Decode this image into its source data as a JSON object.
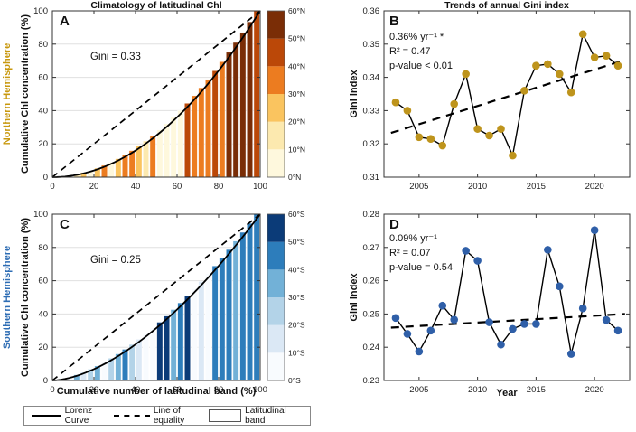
{
  "panels": {
    "A": {
      "letter": "A",
      "title": "Climatology of latitudinal Chl",
      "hemisphere": "Northern Hemisphere",
      "ylabel": "Cumulative Chl concentration (%)",
      "gini_label": "Gini = 0.33"
    },
    "B": {
      "letter": "B",
      "title": "Trends of annual Gini index",
      "ylabel": "Gini index",
      "rate": "0.36% yr⁻¹ *",
      "r2": "R² = 0.47",
      "pvalue": "p-value < 0.01"
    },
    "C": {
      "letter": "C",
      "hemisphere": "Southern Hemisphere",
      "ylabel": "Cumulative Chl concentration (%)",
      "xlabel": "Cumulative number of latitudinal band (%)",
      "gini_label": "Gini = 0.25"
    },
    "D": {
      "letter": "D",
      "ylabel": "Gini index",
      "xlabel": "Year",
      "rate": "0.09% yr⁻¹",
      "r2": "R² = 0.07",
      "pvalue": "p-value = 0.54"
    }
  },
  "legend": {
    "items": [
      {
        "swatch": "solid",
        "label": "Lorenz Curve"
      },
      {
        "swatch": "dashed",
        "label": "Line of equality"
      },
      {
        "swatch": "box",
        "label": "Latitudinal band"
      }
    ]
  },
  "colors": {
    "north_accent": "#C8980E",
    "south_accent": "#2E6DB4",
    "axis": "#333333",
    "grid": "#e0e0e0"
  },
  "chart_data": [
    {
      "id": "A",
      "type": "bar",
      "subtype": "lorenz",
      "title": "Climatology of latitudinal Chl",
      "gini": 0.33,
      "lorenz_exponent": 2.0,
      "xlim": [
        0,
        100
      ],
      "ylim": [
        0,
        100
      ],
      "xticks": [
        0,
        20,
        40,
        60,
        80,
        100
      ],
      "xtick_labels": [
        "0",
        "20",
        "40",
        "60",
        "80",
        "100"
      ],
      "yticks": [
        0,
        20,
        40,
        60,
        80,
        100
      ],
      "ytick_labels": [
        "0",
        "20",
        "40",
        "60",
        "80",
        "100"
      ],
      "grid": true,
      "n_bars": 30,
      "bar_bands": [
        0,
        2,
        0,
        1,
        2,
        0,
        2,
        3,
        0,
        2,
        3,
        3,
        2,
        1,
        3,
        0,
        0,
        0,
        0,
        4,
        3,
        3,
        3,
        4,
        3,
        5,
        5,
        5,
        5,
        4
      ],
      "band_colors": [
        "#FEF8DD",
        "#FCE9AF",
        "#FAC45F",
        "#EC7C20",
        "#BB4808",
        "#7A2D06"
      ],
      "colorbar_labels": [
        "0°N",
        "10°N",
        "20°N",
        "30°N",
        "40°N",
        "50°N",
        "60°N"
      ]
    },
    {
      "id": "B",
      "type": "line",
      "title": "Trends of annual Gini index",
      "xlabel": "",
      "ylabel": "Gini index",
      "x": [
        2003,
        2004,
        2005,
        2006,
        2007,
        2008,
        2009,
        2010,
        2011,
        2012,
        2013,
        2014,
        2015,
        2016,
        2017,
        2018,
        2019,
        2020,
        2021,
        2022
      ],
      "y": [
        0.3325,
        0.33,
        0.322,
        0.3215,
        0.3195,
        0.332,
        0.341,
        0.3245,
        0.3225,
        0.3245,
        0.3165,
        0.336,
        0.3435,
        0.344,
        0.341,
        0.3355,
        0.353,
        0.346,
        0.3465,
        0.3435
      ],
      "trend": {
        "label": "0.36% yr⁻¹ *",
        "r2": 0.47,
        "pvalue": "< 0.01",
        "points": [
          [
            2002.6,
            0.3233
          ],
          [
            2022.6,
            0.3452
          ]
        ]
      },
      "xlim": [
        2002,
        2023
      ],
      "ylim": [
        0.31,
        0.36
      ],
      "xticks": [
        2005,
        2010,
        2015,
        2020
      ],
      "xtick_labels": [
        "2005",
        "2010",
        "2015",
        "2020"
      ],
      "yticks": [
        0.31,
        0.32,
        0.33,
        0.34,
        0.35,
        0.36
      ],
      "ytick_labels": [
        "0.31",
        "0.32",
        "0.33",
        "0.34",
        "0.35",
        "0.36"
      ],
      "grid": false,
      "marker_color": "#BE941C"
    },
    {
      "id": "C",
      "type": "bar",
      "subtype": "lorenz",
      "title": "",
      "xlabel": "Cumulative number of latitudinal band (%)",
      "gini": 0.25,
      "lorenz_exponent": 1.667,
      "xlim": [
        0,
        100
      ],
      "ylim": [
        0,
        100
      ],
      "xticks": [
        0,
        20,
        40,
        60,
        80,
        100
      ],
      "xtick_labels": [
        "0",
        "20",
        "40",
        "60",
        "80",
        "100"
      ],
      "yticks": [
        0,
        20,
        40,
        60,
        80,
        100
      ],
      "ytick_labels": [
        "0",
        "20",
        "40",
        "60",
        "80",
        "100"
      ],
      "grid": true,
      "n_bars": 30,
      "bar_bands": [
        0,
        2,
        0,
        3,
        1,
        2,
        3,
        0,
        2,
        3,
        4,
        2,
        1,
        0,
        0,
        5,
        5,
        3,
        4,
        5,
        0,
        1,
        0,
        4,
        4,
        4,
        3,
        4,
        4,
        4
      ],
      "band_colors": [
        "#F8FBFE",
        "#DBE8F5",
        "#B3D3E8",
        "#72B1D7",
        "#2D7DBB",
        "#0B3B78"
      ],
      "colorbar_labels": [
        "0°S",
        "10°S",
        "20°S",
        "30°S",
        "40°S",
        "50°S",
        "60°S"
      ]
    },
    {
      "id": "D",
      "type": "line",
      "title": "",
      "xlabel": "Year",
      "ylabel": "Gini index",
      "x": [
        2003,
        2004,
        2005,
        2006,
        2007,
        2008,
        2009,
        2010,
        2011,
        2012,
        2013,
        2014,
        2015,
        2016,
        2017,
        2018,
        2019,
        2020,
        2021,
        2022
      ],
      "y": [
        0.2488,
        0.244,
        0.2387,
        0.245,
        0.2525,
        0.2483,
        0.269,
        0.266,
        0.2475,
        0.2408,
        0.2455,
        0.247,
        0.247,
        0.2693,
        0.2583,
        0.238,
        0.2517,
        0.2752,
        0.2482,
        0.245
      ],
      "trend": {
        "label": "0.09% yr⁻¹",
        "r2": 0.07,
        "pvalue": "= 0.54",
        "points": [
          [
            2002.6,
            0.2459
          ],
          [
            2022.6,
            0.25
          ]
        ]
      },
      "xlim": [
        2002,
        2023
      ],
      "ylim": [
        0.23,
        0.28
      ],
      "xticks": [
        2005,
        2010,
        2015,
        2020
      ],
      "xtick_labels": [
        "2005",
        "2010",
        "2015",
        "2020"
      ],
      "yticks": [
        0.23,
        0.24,
        0.25,
        0.26,
        0.27,
        0.28
      ],
      "ytick_labels": [
        "0.23",
        "0.24",
        "0.25",
        "0.26",
        "0.27",
        "0.28"
      ],
      "grid": false,
      "marker_color": "#2F5FA8"
    }
  ]
}
